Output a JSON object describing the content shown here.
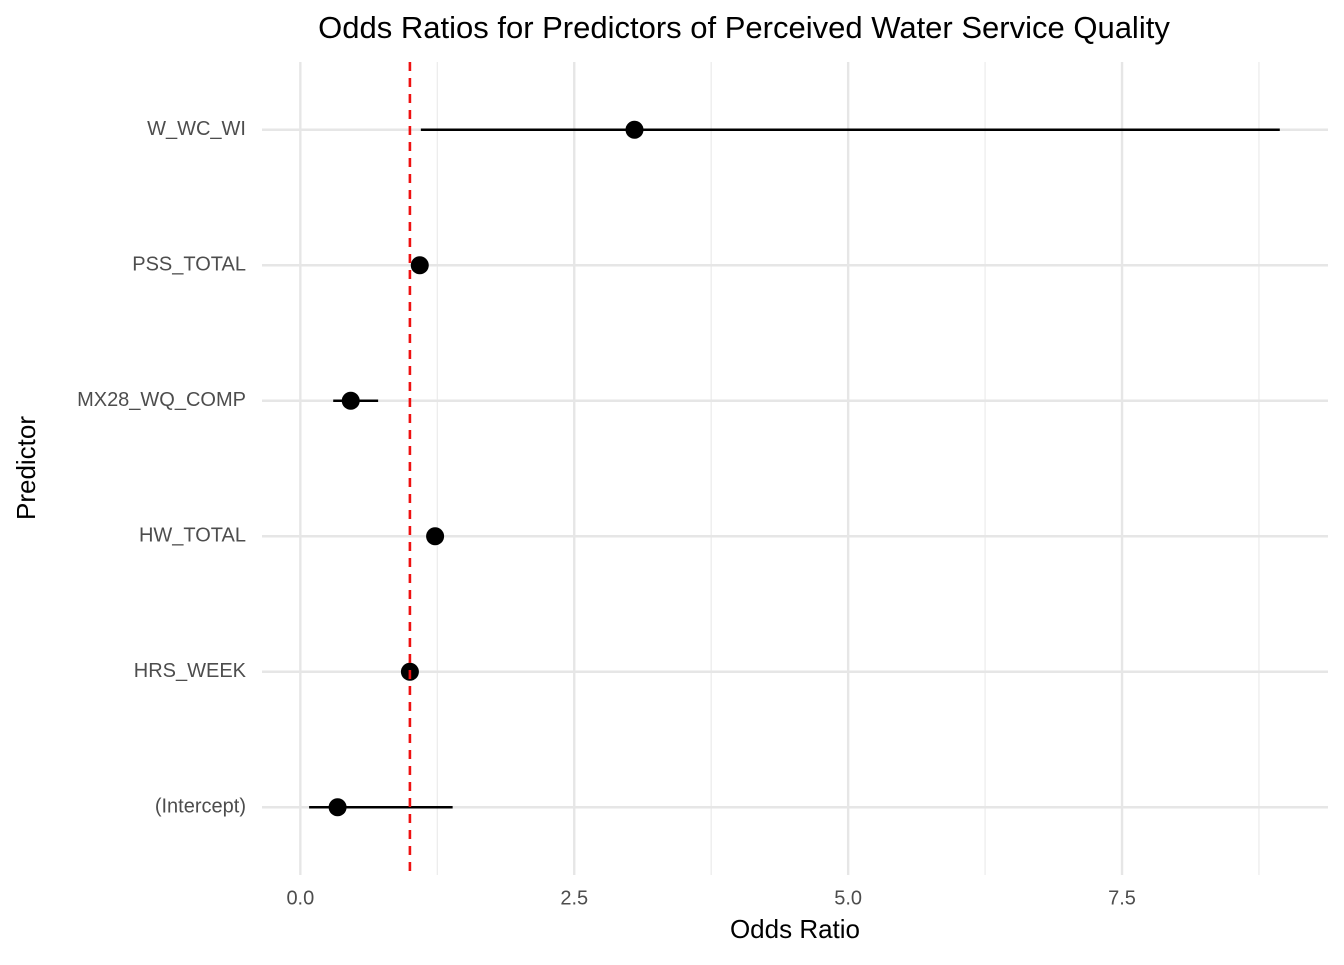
{
  "chart_data": {
    "type": "forest",
    "title": "Odds Ratios for Predictors of Perceived Water Service Quality",
    "x_label": "Odds Ratio",
    "y_label": "Predictor",
    "categories": [
      "(Intercept)",
      "HRS_WEEK",
      "HW_TOTAL",
      "MX28_WQ_COMP",
      "PSS_TOTAL",
      "W_WC_WI"
    ],
    "values": [
      0.34,
      1.0,
      1.23,
      0.46,
      1.09,
      3.05
    ],
    "lower": [
      0.08,
      0.99,
      1.2,
      0.3,
      1.05,
      1.1
    ],
    "upper": [
      1.39,
      1.02,
      1.27,
      0.71,
      1.13,
      8.94
    ],
    "color": "#000000",
    "ref_line": 1,
    "ref_color": "#ee1111",
    "xlim": [
      -0.35,
      9.38
    ],
    "xticks": [
      {
        "value": 0,
        "label": "0.0"
      },
      2.5,
      {
        "value": 5,
        "label": "5.0"
      },
      7.5
    ],
    "grid": true
  }
}
